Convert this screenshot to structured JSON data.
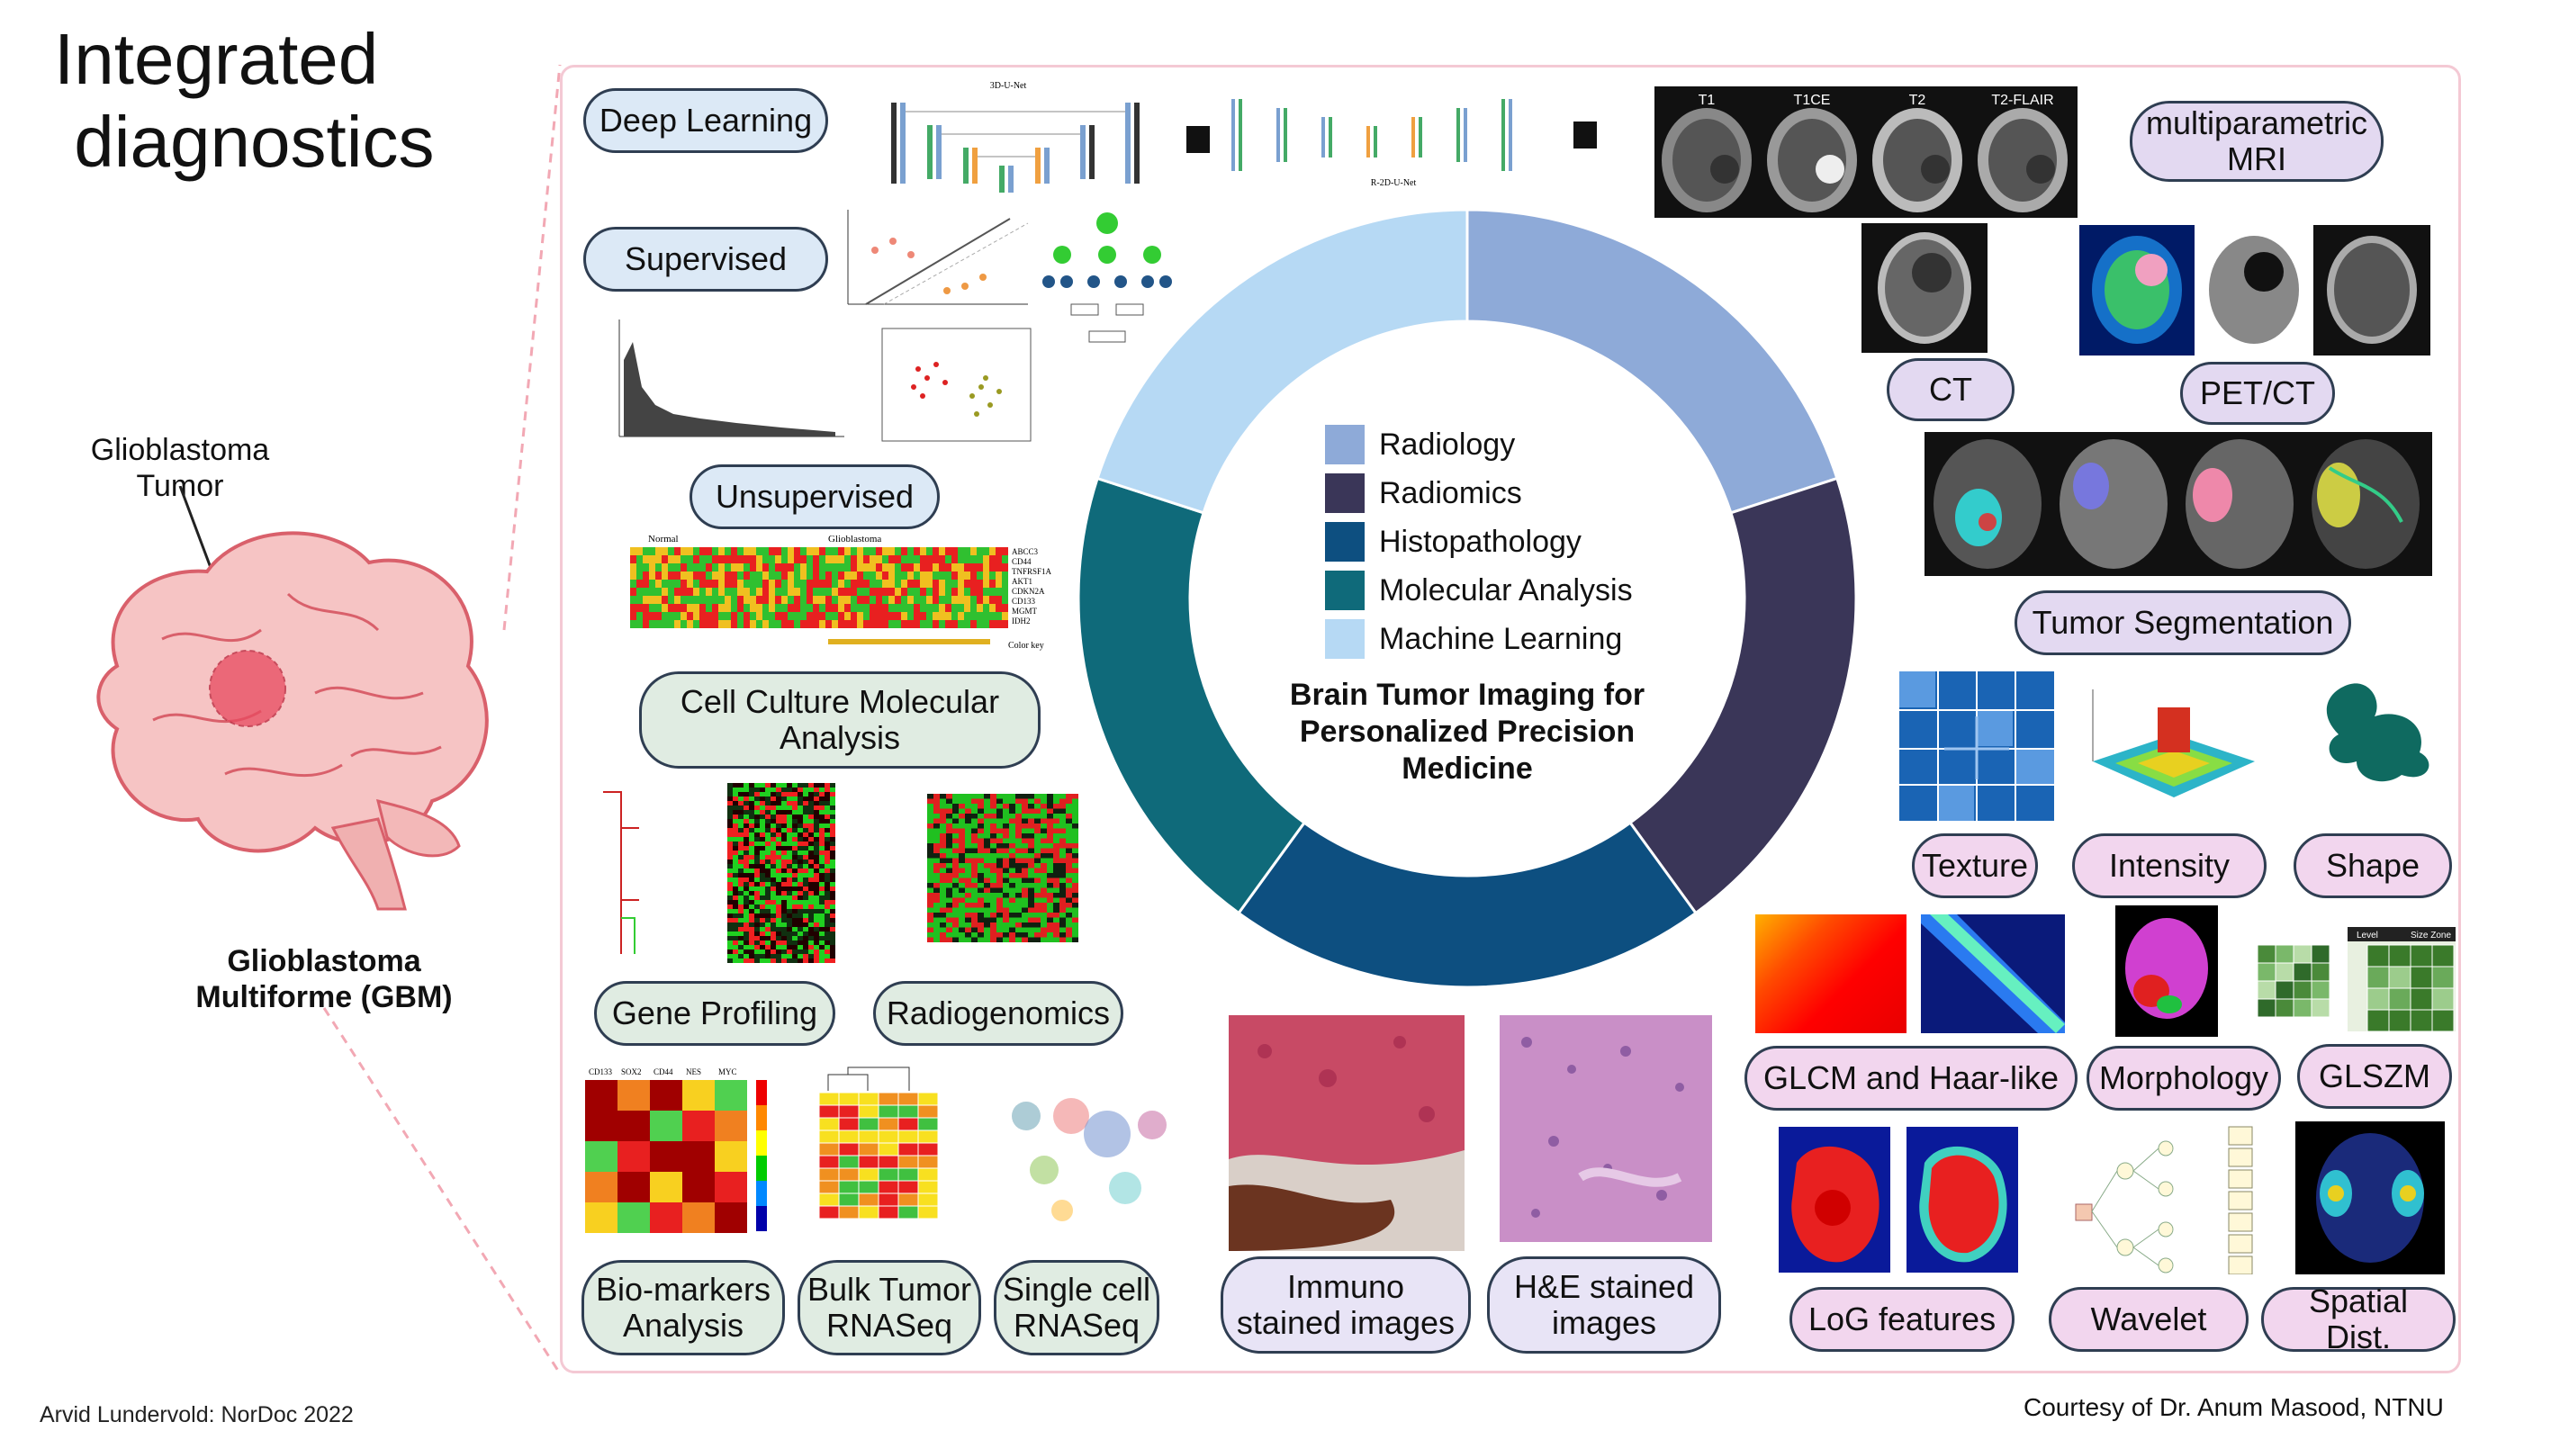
{
  "title": "Integrated\n diagnostics",
  "footer_left": "Arvid Lundervold: NorDoc 2022",
  "footer_right": "Courtesy of Dr. Anum Masood, NTNU",
  "brain": {
    "tumor_label": "Glioblastoma\nTumor",
    "gbm_label": "Glioblastoma\nMultiforme (GBM)",
    "colors": {
      "brain": "#f6c4c4",
      "outline": "#d9606b",
      "tumor": "#e84a5f"
    }
  },
  "donut": {
    "center_text": "Brain Tumor Imaging for\nPersonalized Precision\nMedicine",
    "segments": [
      {
        "label": "Radiology",
        "value": 20,
        "color": "#8eaad8"
      },
      {
        "label": "Radiomics",
        "value": 20,
        "color": "#3a3658"
      },
      {
        "label": "Histopathology",
        "value": 20,
        "color": "#0d4f80"
      },
      {
        "label": "Molecular Analysis",
        "value": 20,
        "color": "#0f6a7a"
      },
      {
        "label": "Machine Learning",
        "value": 20,
        "color": "#b6d9f4"
      }
    ]
  },
  "pills": {
    "deep_learning": "Deep Learning",
    "supervised": "Supervised",
    "unsupervised": "Unsupervised",
    "cell_culture": "Cell Culture Molecular\nAnalysis",
    "gene_profiling": "Gene Profiling",
    "radiogenomics": "Radiogenomics",
    "biomarkers": "Bio-markers\nAnalysis",
    "bulk_tumor": "Bulk Tumor\nRNASeq",
    "single_cell": "Single cell\nRNASeq",
    "immuno": "Immuno\nstained images",
    "he_stained": "H&E stained\nimages",
    "multiparametric": "multiparametric\nMRI",
    "ct": "CT",
    "pet_ct": "PET/CT",
    "tumor_segmentation": "Tumor Segmentation",
    "texture": "Texture",
    "intensity": "Intensity",
    "shape": "Shape",
    "glcm": "GLCM and Haar-like",
    "morphology": "Morphology",
    "glszm": "GLSZM",
    "log": "LoG features",
    "wavelet": "Wavelet",
    "spatial": "Spatial Dist."
  },
  "image_labels": {
    "unet_title": "3D-U-Net",
    "unet2_title": "R-2D-U-Net",
    "mri_sequences": [
      "T1",
      "T1CE",
      "T2",
      "T2-FLAIR"
    ],
    "heatmap_normal": "Normal",
    "heatmap_gbm": "Glioblastoma",
    "heatmap_genes": [
      "ABCC3",
      "CD44",
      "TNFRSF1A",
      "AKT1",
      "CDKN2A",
      "CD133",
      "MGMT",
      "IDH2"
    ],
    "color_key": "Color key",
    "biomarker_cols": [
      "CD133",
      "SOX2",
      "CD44",
      "NES",
      "MYC"
    ],
    "glszm_headers": [
      "Level",
      "Size Zone"
    ]
  }
}
